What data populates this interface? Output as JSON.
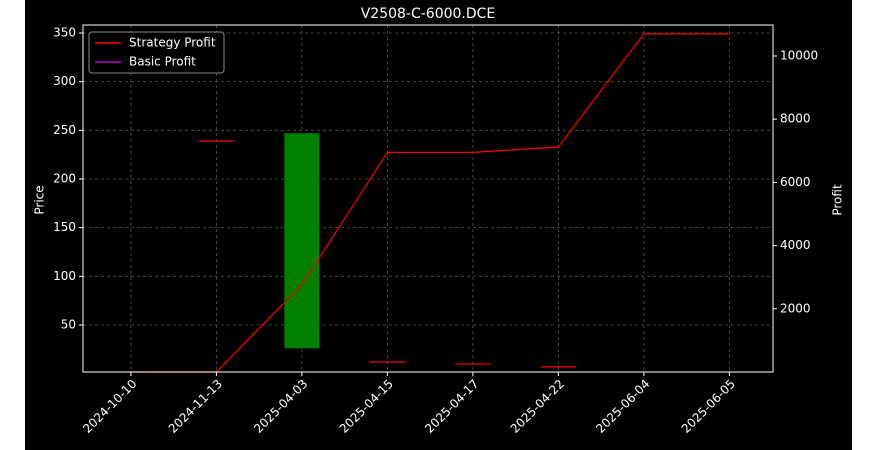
{
  "chart_data": {
    "type": "candlestick",
    "title": "V2508-C-6000.DCE",
    "y_label": "Price",
    "y2_label": "Profit",
    "categories": [
      "2024-10-10",
      "2024-11-13",
      "2025-04-03",
      "2025-04-15",
      "2025-04-17",
      "2025-04-22",
      "2025-06-04",
      "2025-06-05"
    ],
    "candles": {
      "open": [
        null,
        239,
        26,
        12,
        10,
        7,
        null,
        null
      ],
      "close": [
        null,
        239,
        247,
        12,
        10,
        7,
        null,
        null
      ],
      "up_color": "#008000",
      "down_color": "#ff0000"
    },
    "series": [
      {
        "name": "Strategy Profit",
        "color": "#ff0000",
        "axis": "y2",
        "values": [
          0,
          0,
          2760,
          6950,
          6950,
          7120,
          10700,
          10700
        ]
      },
      {
        "name": "Basic Profit",
        "color": "#bf00bf",
        "axis": "y2",
        "values": [
          null,
          null,
          null,
          null,
          null,
          null,
          null,
          null
        ]
      }
    ],
    "ylim": [
      1.7,
      358.2
    ],
    "yticks": [
      50,
      100,
      150,
      200,
      250,
      300,
      350
    ],
    "y2lim": [
      0,
      10980
    ],
    "y2ticks": [
      2000,
      4000,
      6000,
      8000,
      10000
    ],
    "grid": true,
    "legend": "upper left"
  }
}
